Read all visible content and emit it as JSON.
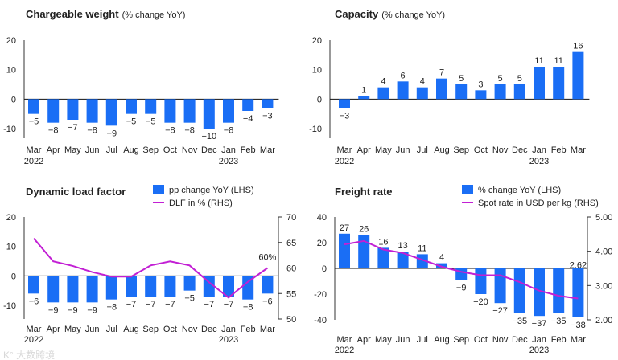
{
  "colors": {
    "bar": "#1a6ef5",
    "line": "#c21fd4",
    "axis": "#333333",
    "watermark": "#dddddd"
  },
  "watermark": "大数跨境",
  "chart_data": [
    {
      "type": "bar",
      "title": "Chargeable weight",
      "subtitle": "(% change YoY)",
      "categories": [
        "Mar",
        "Apr",
        "May",
        "Jun",
        "Jul",
        "Aug",
        "Sep",
        "Oct",
        "Nov",
        "Dec",
        "Jan",
        "Feb",
        "Mar"
      ],
      "year_labels": {
        "0": "2022",
        "10": "2023"
      },
      "values": [
        -5,
        -8,
        -7,
        -8,
        -9,
        -5,
        -5,
        -8,
        -8,
        -10,
        -8,
        -4,
        -3
      ],
      "ylim": [
        -15,
        20
      ],
      "yticks": [
        20,
        10,
        0,
        -10
      ]
    },
    {
      "type": "bar",
      "title": "Capacity",
      "subtitle": "(% change YoY)",
      "categories": [
        "Mar",
        "Apr",
        "May",
        "Jun",
        "Jul",
        "Aug",
        "Sep",
        "Oct",
        "Nov",
        "Dec",
        "Jan",
        "Feb",
        "Mar"
      ],
      "year_labels": {
        "0": "2022",
        "10": "2023"
      },
      "values": [
        -3,
        1,
        4,
        6,
        4,
        7,
        5,
        3,
        5,
        5,
        11,
        11,
        16
      ],
      "ylim": [
        -15,
        20
      ],
      "yticks": [
        20,
        10,
        0,
        -10
      ]
    },
    {
      "type": "bar+line",
      "title": "Dynamic load factor",
      "categories": [
        "Mar",
        "Apr",
        "May",
        "Jun",
        "Jul",
        "Aug",
        "Sep",
        "Oct",
        "Nov",
        "Dec",
        "Jan",
        "Feb",
        "Mar"
      ],
      "year_labels": {
        "0": "2022",
        "10": "2023"
      },
      "series": [
        {
          "name": "pp change YoY (LHS)",
          "type": "bar",
          "values": [
            -6,
            -9,
            -9,
            -9,
            -8,
            -7,
            -7,
            -7,
            -5,
            -7,
            -7,
            -8,
            -6
          ]
        },
        {
          "name": "DLF in % (RHS)",
          "type": "line",
          "values": [
            65.8,
            61.3,
            60.4,
            59.2,
            58.3,
            58.3,
            60.5,
            61.3,
            60.5,
            57.2,
            54.2,
            57.3,
            60.0
          ]
        }
      ],
      "line_end_label": "60%",
      "ylim": [
        -15,
        20
      ],
      "yticks": [
        20,
        10,
        0,
        -10
      ],
      "y2lim": [
        50,
        70
      ],
      "y2ticks": [
        "70",
        "65",
        "60",
        "55",
        "50"
      ]
    },
    {
      "type": "bar+line",
      "title": "Freight rate",
      "categories": [
        "Mar",
        "Apr",
        "May",
        "Jun",
        "Jul",
        "Aug",
        "Sep",
        "Oct",
        "Nov",
        "Dec",
        "Jan",
        "Feb",
        "Mar"
      ],
      "year_labels": {
        "0": "2022",
        "10": "2023"
      },
      "series": [
        {
          "name": "% change YoY (LHS)",
          "type": "bar",
          "values": [
            27,
            26,
            16,
            13,
            11,
            4,
            -9,
            -20,
            -27,
            -35,
            -37,
            -35,
            -38
          ]
        },
        {
          "name": "Spot rate in USD per kg (RHS)",
          "type": "line",
          "values": [
            4.2,
            4.3,
            4.05,
            3.95,
            3.75,
            3.55,
            3.4,
            3.3,
            3.3,
            3.1,
            2.85,
            2.7,
            2.62
          ]
        }
      ],
      "line_end_label": "2.62",
      "ylim": [
        -40,
        40
      ],
      "yticks": [
        40,
        20,
        0,
        -20,
        -40
      ],
      "y2lim": [
        2.0,
        5.0
      ],
      "y2ticks": [
        "5.00",
        "4.00",
        "3.00",
        "2.00"
      ]
    }
  ]
}
